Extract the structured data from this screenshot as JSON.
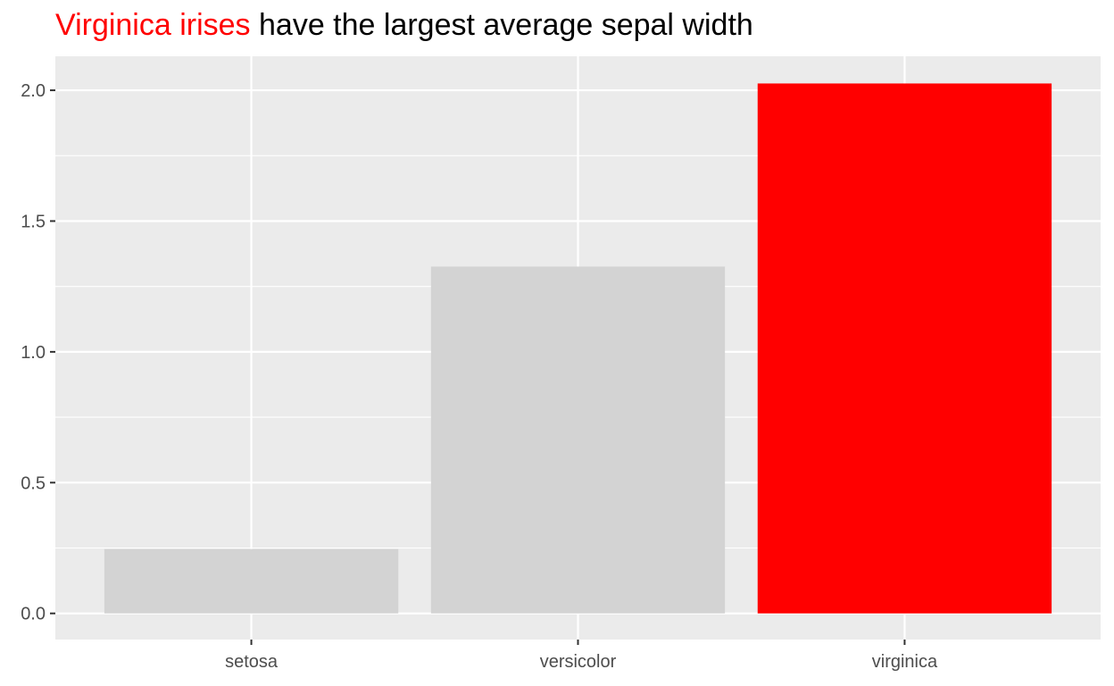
{
  "chart_data": {
    "type": "bar",
    "title": {
      "highlight": "Virginica irises",
      "rest": " have the largest average sepal width",
      "highlight_color": "#ff0000"
    },
    "xlabel": "",
    "ylabel": "",
    "categories": [
      "setosa",
      "versicolor",
      "virginica"
    ],
    "values": [
      0.246,
      1.326,
      2.026
    ],
    "bar_colors": [
      "#d3d3d3",
      "#d3d3d3",
      "#ff0000"
    ],
    "highlighted_category": "virginica",
    "ylim": [
      -0.1,
      2.13
    ],
    "yticks": [
      0.0,
      0.5,
      1.0,
      1.5,
      2.0
    ],
    "ytick_labels": [
      "0.0",
      "0.5",
      "1.0",
      "1.5",
      "2.0"
    ],
    "grid": true,
    "legend": "none",
    "panel_background": "#ebebeb"
  }
}
